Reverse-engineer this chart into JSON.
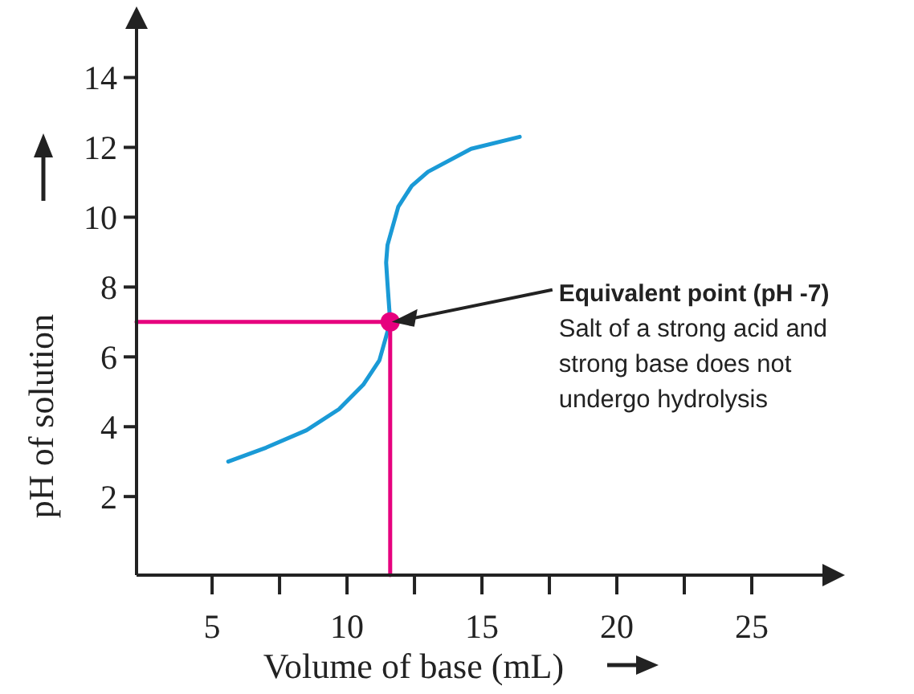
{
  "chart_data": {
    "type": "line",
    "xlabel": "Volume of base (mL)",
    "ylabel": "pH of solution",
    "xlim": [
      2.2,
      27.5
    ],
    "ylim": [
      -0.25,
      15.3
    ],
    "xticks": [
      5,
      {
        "value": 7.5,
        "label": null
      },
      10,
      {
        "value": 12.5,
        "label": null
      },
      15,
      {
        "value": 17.5,
        "label": null
      },
      20,
      {
        "value": 22.5,
        "label": null
      },
      25
    ],
    "yticks": [
      2,
      4,
      6,
      8,
      10,
      12,
      14
    ],
    "series": [
      {
        "type": "line",
        "color": "#1a9ad6",
        "x": [
          5.6,
          7,
          8.5,
          9.7,
          10.6,
          11.2,
          11.6,
          11.5,
          11.45,
          11.5,
          11.9,
          12.4,
          13,
          14.6,
          16.4
        ],
        "values": [
          3,
          3.4,
          3.9,
          4.5,
          5.2,
          5.9,
          7,
          8.1,
          8.7,
          9.2,
          10.3,
          10.9,
          11.3,
          11.96,
          12.3
        ]
      },
      {
        "type": "line",
        "color": "#e6007e",
        "x": [
          2.2,
          11.6,
          11.6
        ],
        "values": [
          7,
          7,
          -0.25
        ]
      },
      {
        "type": "scatter",
        "color": "#e6007e",
        "marker": "circle",
        "x": [
          11.6
        ],
        "values": [
          7
        ]
      }
    ],
    "annotations": [
      {
        "text": "Equivalent point (pH -7)\nSalt of a strong acid and\nstrong base does not\nundergo hydrolysis",
        "x": 11.6,
        "y": 7
      }
    ]
  }
}
